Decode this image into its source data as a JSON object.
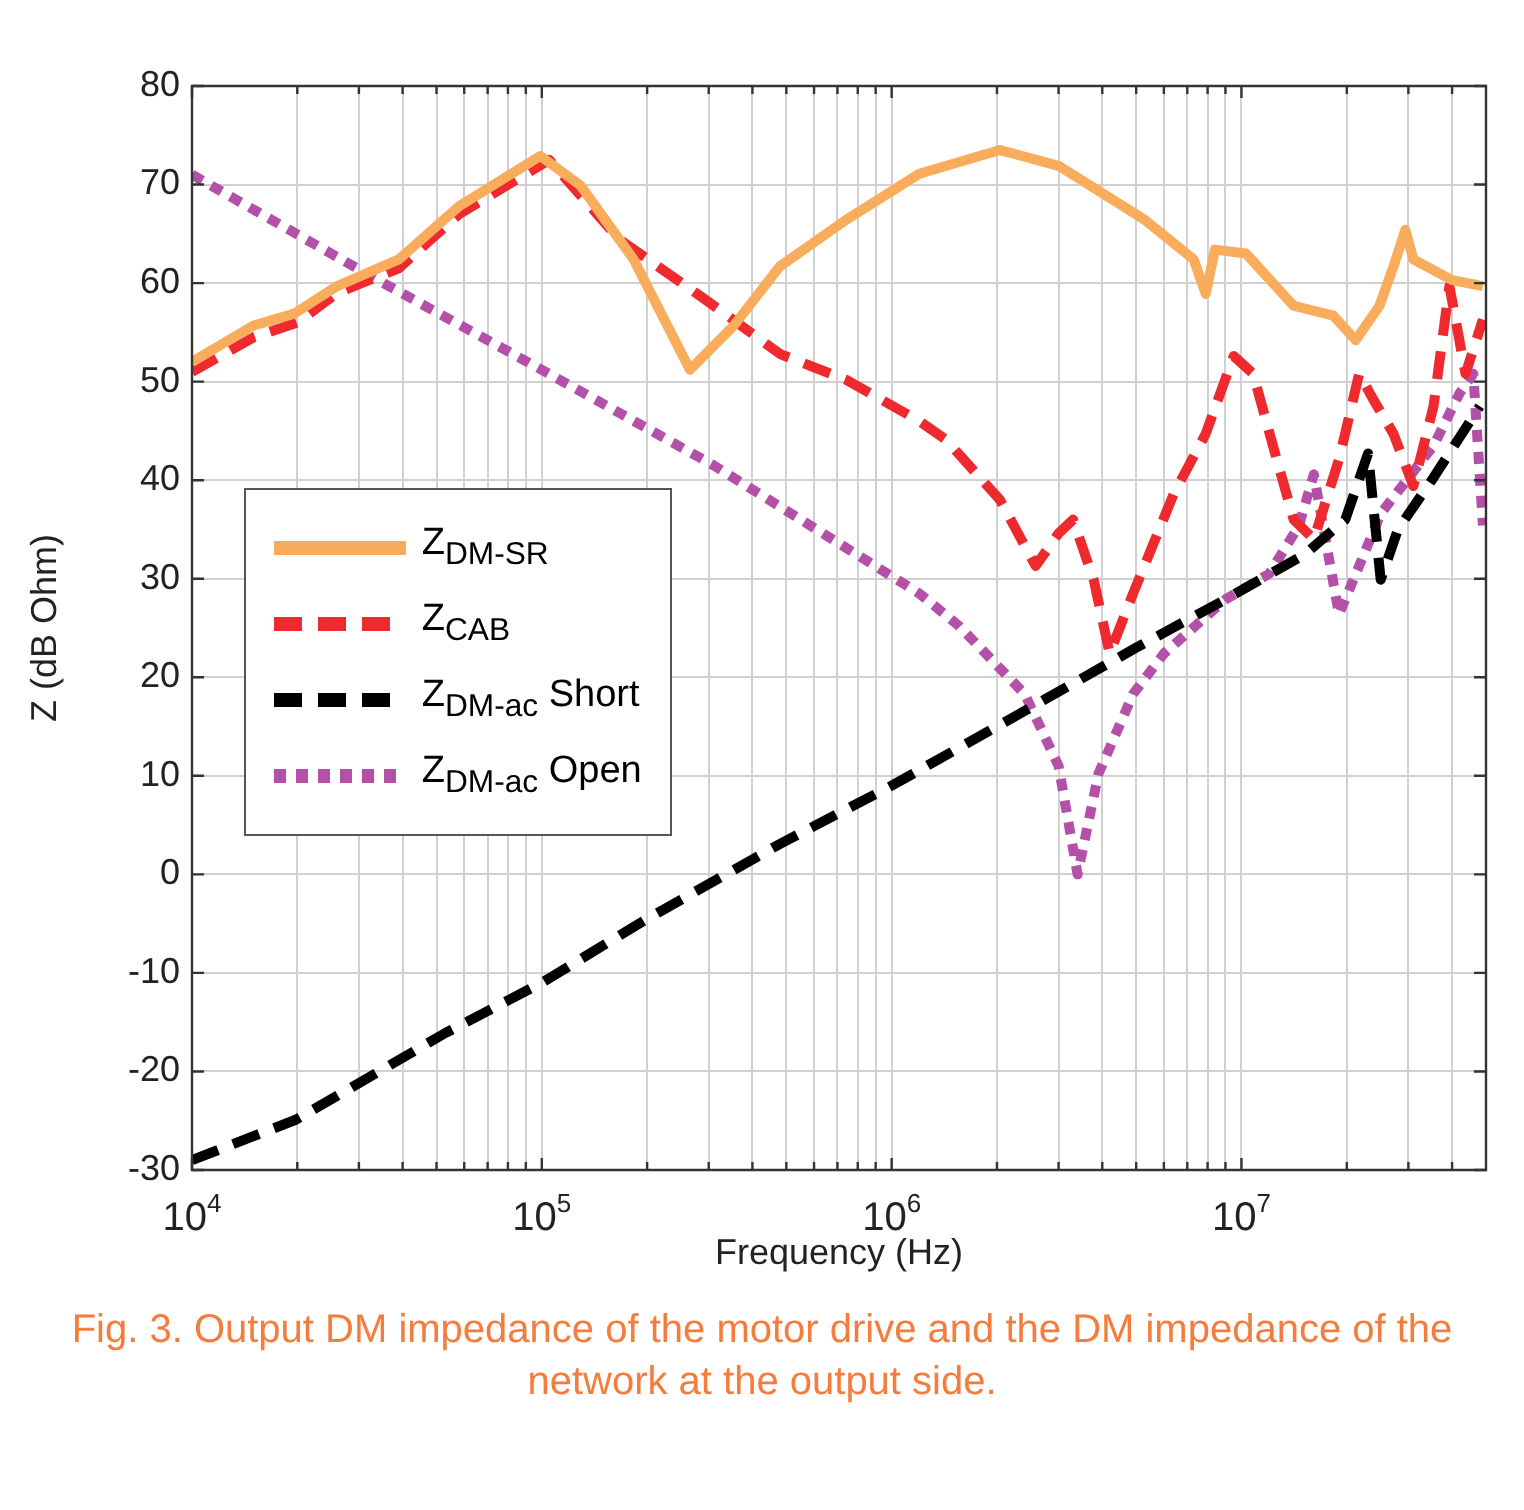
{
  "chart_data": {
    "type": "line",
    "xlabel": "Frequency (Hz)",
    "ylabel": "Z (dB Ohm)",
    "log": "x",
    "xlim": [
      10000,
      50000000
    ],
    "ylim": [
      -30,
      80
    ],
    "xticks": [
      {
        "value": 10000,
        "label": "10$^{4}$"
      },
      {
        "value": 20000,
        "label": null
      },
      {
        "value": 30000,
        "label": null
      },
      {
        "value": 40000,
        "label": null
      },
      {
        "value": 50000,
        "label": null
      },
      {
        "value": 60000,
        "label": null
      },
      {
        "value": 70000,
        "label": null
      },
      {
        "value": 80000,
        "label": null
      },
      {
        "value": 90000,
        "label": null
      },
      {
        "value": 100000,
        "label": "10$^{5}$"
      },
      {
        "value": 200000,
        "label": null
      },
      {
        "value": 300000,
        "label": null
      },
      {
        "value": 400000,
        "label": null
      },
      {
        "value": 500000,
        "label": null
      },
      {
        "value": 600000,
        "label": null
      },
      {
        "value": 700000,
        "label": null
      },
      {
        "value": 800000,
        "label": null
      },
      {
        "value": 900000,
        "label": null
      },
      {
        "value": 1000000,
        "label": "10$^{6}$"
      },
      {
        "value": 2000000,
        "label": null
      },
      {
        "value": 3000000,
        "label": null
      },
      {
        "value": 4000000,
        "label": null
      },
      {
        "value": 5000000,
        "label": null
      },
      {
        "value": 6000000,
        "label": null
      },
      {
        "value": 7000000,
        "label": null
      },
      {
        "value": 8000000,
        "label": null
      },
      {
        "value": 9000000,
        "label": null
      },
      {
        "value": 10000000,
        "label": "10$^{7}$"
      },
      {
        "value": 20000000,
        "label": null
      },
      {
        "value": 30000000,
        "label": null
      },
      {
        "value": 40000000,
        "label": null
      }
    ],
    "yticks": [
      -30,
      -20,
      -10,
      0,
      10,
      20,
      30,
      40,
      50,
      60,
      70,
      80
    ],
    "grid": true,
    "legend": "left",
    "marker": "none",
    "series": [
      {
        "name": "Z$_{DM-SR}$",
        "color": "#f9ad5c",
        "line_style": "solid",
        "x": [
          10000,
          15000,
          19600,
          26000,
          39000,
          58000,
          99000,
          129000,
          183000,
          265000,
          354000,
          479000,
          740000,
          1200000,
          2040000,
          3000000,
          5300000,
          7300000,
          7900000,
          8400000,
          10300000,
          14100000,
          18300000,
          21200000,
          24800000,
          27200000,
          29400000,
          31000000,
          40000000,
          49000000
        ],
        "values": [
          52,
          55.7,
          56.9,
          59.7,
          62.4,
          67.8,
          72.9,
          69.9,
          62.4,
          51.2,
          55.7,
          61.7,
          66.4,
          71.1,
          73.5,
          71.9,
          66.4,
          62.4,
          58.9,
          63.4,
          63,
          57.7,
          56.7,
          54.2,
          57.7,
          61.7,
          65.4,
          62.4,
          60.3,
          59.7
        ]
      },
      {
        "name": "Z$_{CAB}$",
        "color": "#ee2a2e",
        "line_style": "dashed",
        "x": [
          10000,
          15000,
          20000,
          26000,
          39000,
          58000,
          105000,
          167000,
          294000,
          480000,
          740000,
          1200000,
          1430000,
          2040000,
          2580000,
          3000000,
          3300000,
          3780000,
          4200000,
          4900000,
          6400000,
          7900000,
          9500000,
          10800000,
          12300000,
          14100000,
          16100000,
          19000000,
          21700000,
          23800000,
          27200000,
          31000000,
          35400000,
          39300000,
          43700000,
          49000000
        ],
        "values": [
          51,
          54.5,
          56,
          59,
          61.5,
          67,
          72.5,
          64.4,
          58.3,
          52.8,
          50.2,
          46,
          44.1,
          38,
          31.3,
          34.6,
          36,
          29.9,
          22.4,
          28.5,
          38.6,
          44.7,
          52.6,
          50.8,
          43.5,
          36,
          34,
          42.1,
          50.8,
          48.2,
          44.7,
          39.4,
          47.5,
          59.7,
          50.8,
          56.3
        ]
      },
      {
        "name": "Z$_{DM-ac}$ Short",
        "color": "#000000",
        "line_style": "dashed",
        "x": [
          10000,
          19800,
          53000,
          100000,
          198000,
          480000,
          1000000,
          2000000,
          5000000,
          9000000,
          15200000,
          19800000,
          23000000,
          25000000,
          28000000,
          35000000,
          48000000
        ],
        "values": [
          -29,
          -24.9,
          -16.1,
          -11,
          -4.6,
          3.1,
          9,
          15,
          23,
          27.9,
          32.5,
          36,
          42.7,
          29.9,
          35,
          40,
          47.5
        ]
      },
      {
        "name": "Z$_{DM-ac}$ Open",
        "color": "#b550a8",
        "line_style": "dotted",
        "x": [
          10000,
          34000,
          100000,
          310000,
          1200000,
          1560000,
          2400000,
          3000000,
          3400000,
          3900000,
          4900000,
          6000000,
          9000000,
          12000000,
          14600000,
          16100000,
          19000000,
          21700000,
          25000000,
          35400000,
          42000000,
          46000000,
          49000000
        ],
        "values": [
          71,
          60.3,
          51.2,
          41.5,
          28.5,
          25.2,
          18.3,
          11,
          0,
          10.2,
          18.3,
          22.4,
          27.9,
          30.5,
          35.4,
          40.6,
          26.4,
          31.3,
          36.6,
          43.5,
          48.8,
          50.8,
          35.4
        ]
      }
    ],
    "annotations": [
      "Fig. 3. Output DM impedance of the motor drive and the DM impedance of the network at the output side."
    ]
  }
}
